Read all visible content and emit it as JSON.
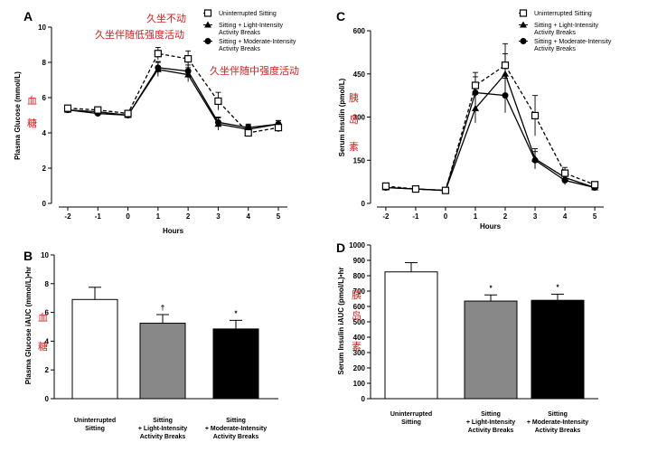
{
  "colors": {
    "annotation": "#d21e1e",
    "bar_light": "#888888",
    "bar_moderate": "#000000",
    "bar_uninterrupted": "#ffffff"
  },
  "legend": {
    "uninterrupted": "Uninterrupted Sitting",
    "light": [
      "Sitting + Light-Intensity",
      "Activity Breaks"
    ],
    "moderate": [
      "Sitting + Moderate-Intensity",
      "Activity Breaks"
    ]
  },
  "chart_data": [
    {
      "panel": "A",
      "type": "line",
      "xlabel": "Hours",
      "ylabel": "Plasma Glucose (mmol/L)",
      "x": [
        -2,
        -1,
        0,
        1,
        2,
        3,
        4,
        5
      ],
      "xlim": [
        -2.3,
        5.3
      ],
      "ylim": [
        0,
        10
      ],
      "yticks": [
        0,
        2,
        4,
        6,
        8,
        10
      ],
      "series": [
        {
          "key": "uninterrupted",
          "name": "Uninterrupted Sitting",
          "marker": "open-square",
          "dashed": true,
          "values": [
            5.4,
            5.3,
            5.1,
            8.5,
            8.2,
            5.8,
            4.0,
            4.3
          ],
          "errors": [
            0.15,
            0.15,
            0.15,
            0.35,
            0.45,
            0.5,
            0.2,
            0.25
          ]
        },
        {
          "key": "light",
          "name": "Sitting + Light-Intensity Activity Breaks",
          "marker": "triangle",
          "dashed": false,
          "values": [
            5.3,
            5.2,
            5.0,
            7.6,
            7.3,
            4.5,
            4.2,
            4.5
          ],
          "errors": [
            0.15,
            0.15,
            0.15,
            0.4,
            0.4,
            0.35,
            0.25,
            0.2
          ]
        },
        {
          "key": "moderate",
          "name": "Sitting + Moderate-Intensity Activity Breaks",
          "marker": "circle",
          "dashed": false,
          "values": [
            5.3,
            5.1,
            5.0,
            7.7,
            7.5,
            4.6,
            4.3,
            4.5
          ],
          "errors": [
            0.15,
            0.15,
            0.15,
            0.35,
            0.35,
            0.3,
            0.2,
            0.2
          ]
        }
      ],
      "annotations": [
        "久坐不动",
        "久坐伴随低强度活动",
        "久坐伴随中强度活动",
        "血",
        "糖"
      ]
    },
    {
      "panel": "C",
      "type": "line",
      "xlabel": "Hours",
      "ylabel": "Serum Insulin (pmol/L)",
      "x": [
        -2,
        -1,
        0,
        1,
        2,
        3,
        4,
        5
      ],
      "xlim": [
        -2.3,
        5.3
      ],
      "ylim": [
        0,
        600
      ],
      "yticks": [
        0,
        150,
        300,
        450,
        600
      ],
      "series": [
        {
          "key": "uninterrupted",
          "name": "Uninterrupted Sitting",
          "marker": "open-square",
          "dashed": true,
          "values": [
            60,
            50,
            45,
            410,
            480,
            305,
            105,
            65
          ],
          "errors": [
            8,
            6,
            6,
            45,
            75,
            70,
            20,
            10
          ]
        },
        {
          "key": "light",
          "name": "Sitting + Light-Intensity Activity Breaks",
          "marker": "triangle",
          "dashed": false,
          "values": [
            55,
            50,
            45,
            330,
            450,
            155,
            90,
            55
          ],
          "errors": [
            8,
            6,
            6,
            50,
            70,
            35,
            20,
            10
          ]
        },
        {
          "key": "moderate",
          "name": "Sitting + Moderate-Intensity Activity Breaks",
          "marker": "circle",
          "dashed": false,
          "values": [
            55,
            50,
            45,
            385,
            375,
            150,
            80,
            55
          ],
          "errors": [
            8,
            6,
            6,
            55,
            60,
            30,
            15,
            10
          ]
        }
      ],
      "annotations": [
        "胰",
        "岛",
        "素"
      ]
    },
    {
      "panel": "B",
      "type": "bar",
      "ylabel": "Plasma Glucose iAUC (mmol/L)•hr",
      "ylim": [
        0,
        10
      ],
      "yticks": [
        0,
        2,
        4,
        6,
        8,
        10
      ],
      "categories": [
        [
          "Uninterrupted",
          "Sitting"
        ],
        [
          "Sitting",
          "+ Light-Intensity",
          "Activity Breaks"
        ],
        [
          "Sitting",
          "+ Moderate-Intensity",
          "Activity Breaks"
        ]
      ],
      "values": [
        6.9,
        5.25,
        4.85
      ],
      "errors": [
        0.85,
        0.6,
        0.6
      ],
      "significance": [
        "",
        "†",
        "*"
      ],
      "annotations": [
        "血",
        "糖"
      ]
    },
    {
      "panel": "D",
      "type": "bar",
      "ylabel": "Serum Insulin iAUC (pmol/L)•hr",
      "ylim": [
        0,
        1000
      ],
      "yticks": [
        0,
        100,
        200,
        300,
        400,
        500,
        600,
        700,
        800,
        900,
        1000
      ],
      "categories": [
        [
          "Uninterrupted",
          "Sitting"
        ],
        [
          "Sitting",
          "+ Light-Intensity",
          "Activity Breaks"
        ],
        [
          "Sitting",
          "+ Moderate-Intensity",
          "Activity Breaks"
        ]
      ],
      "values": [
        825,
        635,
        640
      ],
      "errors": [
        60,
        40,
        40
      ],
      "significance": [
        "",
        "*",
        "*"
      ],
      "annotations": [
        "胰",
        "岛",
        "素"
      ]
    }
  ]
}
